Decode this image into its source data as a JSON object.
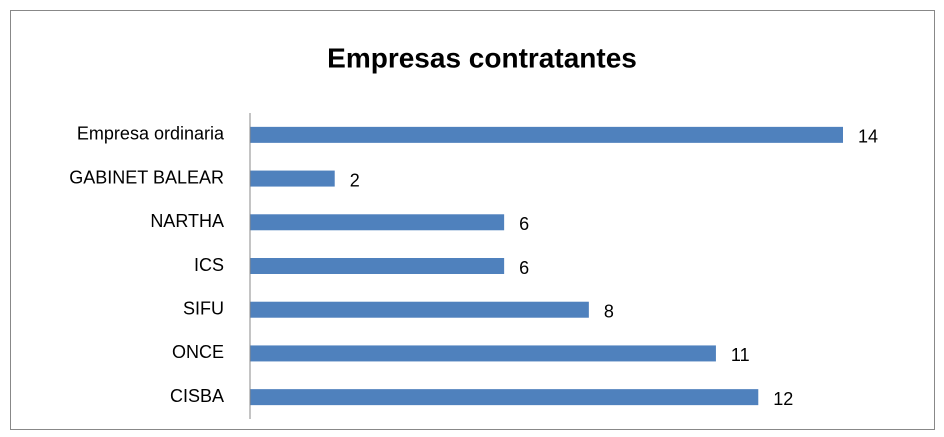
{
  "chart_data": {
    "type": "bar",
    "orientation": "horizontal",
    "title": "Empresas contratantes",
    "categories": [
      "Empresa ordinaria",
      "GABINET BALEAR",
      "NARTHA",
      "ICS",
      "SIFU",
      "ONCE",
      "CISBA"
    ],
    "values": [
      14,
      2,
      6,
      6,
      8,
      11,
      12
    ],
    "color": "#4f81bd",
    "xlim": [
      0,
      14
    ]
  }
}
